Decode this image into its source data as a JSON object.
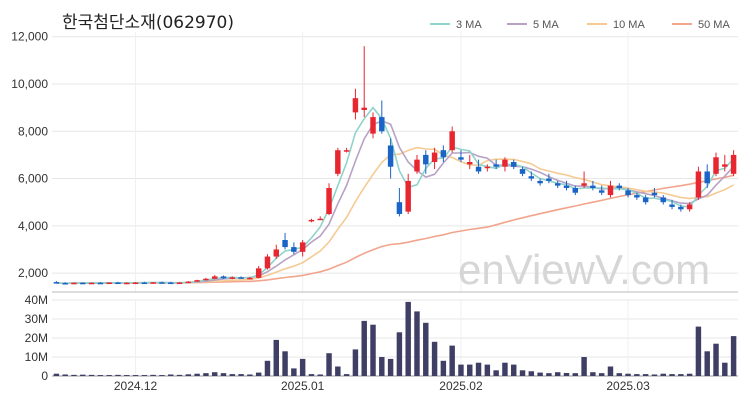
{
  "title": "한국첨단소재(062970)",
  "watermark": "enViewV.com",
  "colors": {
    "up": "#e8262f",
    "down": "#1a64c8",
    "volume": "#3f3f66",
    "ma3": "#8fd3cc",
    "ma5": "#b7a2c6",
    "ma10": "#f5ca93",
    "ma50": "#f2a48c"
  },
  "chart_data": {
    "type": "candlestick",
    "price_axis": {
      "ylim": [
        1200,
        12200
      ],
      "ticks": [
        "2,000",
        "4,000",
        "6,000",
        "8,000",
        "10,000",
        "12,000"
      ],
      "tick_values": [
        2000,
        4000,
        6000,
        8000,
        10000,
        12000
      ]
    },
    "volume_axis": {
      "ylim": [
        0,
        40
      ],
      "ticks": [
        "0",
        "10M",
        "20M",
        "30M",
        "40M"
      ],
      "tick_values": [
        0,
        10,
        20,
        30,
        40
      ],
      "unit": "M"
    },
    "x_labels": [
      {
        "label": "2024.12",
        "index": 9
      },
      {
        "label": "2025.01",
        "index": 28
      },
      {
        "label": "2025.02",
        "index": 46
      },
      {
        "label": "2025.03",
        "index": 65
      }
    ],
    "legend": [
      "3 MA",
      "5 MA",
      "10 MA",
      "50 MA"
    ],
    "candles": [
      [
        1620,
        1660,
        1580,
        1580
      ],
      [
        1580,
        1620,
        1540,
        1560
      ],
      [
        1560,
        1600,
        1530,
        1590
      ],
      [
        1590,
        1610,
        1560,
        1570
      ],
      [
        1570,
        1600,
        1540,
        1590
      ],
      [
        1590,
        1620,
        1560,
        1580
      ],
      [
        1580,
        1610,
        1550,
        1600
      ],
      [
        1600,
        1630,
        1570,
        1580
      ],
      [
        1580,
        1610,
        1560,
        1590
      ],
      [
        1590,
        1620,
        1570,
        1600
      ],
      [
        1600,
        1630,
        1570,
        1590
      ],
      [
        1590,
        1620,
        1560,
        1610
      ],
      [
        1610,
        1640,
        1580,
        1600
      ],
      [
        1600,
        1630,
        1560,
        1560
      ],
      [
        1560,
        1620,
        1540,
        1600
      ],
      [
        1600,
        1660,
        1580,
        1640
      ],
      [
        1640,
        1720,
        1620,
        1700
      ],
      [
        1700,
        1800,
        1680,
        1760
      ],
      [
        1760,
        1920,
        1740,
        1860
      ],
      [
        1860,
        1900,
        1760,
        1780
      ],
      [
        1780,
        1860,
        1740,
        1820
      ],
      [
        1820,
        1860,
        1760,
        1780
      ],
      [
        1780,
        1840,
        1740,
        1800
      ],
      [
        1800,
        2300,
        1780,
        2200
      ],
      [
        2200,
        2800,
        2150,
        2700
      ],
      [
        2700,
        3200,
        2600,
        3000
      ],
      [
        3400,
        3700,
        3000,
        3100
      ],
      [
        3100,
        3300,
        2800,
        2900
      ],
      [
        2900,
        3400,
        2700,
        3300
      ],
      [
        4200,
        4300,
        4150,
        4250
      ],
      [
        4300,
        4400,
        4250,
        4300
      ],
      [
        4500,
        5800,
        4450,
        5600
      ],
      [
        6200,
        7300,
        6100,
        7200
      ],
      [
        7200,
        7300,
        7100,
        7200
      ],
      [
        8800,
        9800,
        8500,
        9400
      ],
      [
        8900,
        11600,
        8600,
        9000
      ],
      [
        7900,
        8800,
        7700,
        8600
      ],
      [
        8600,
        9300,
        7900,
        8000
      ],
      [
        7400,
        7700,
        6000,
        6500
      ],
      [
        5000,
        5600,
        4400,
        4500
      ],
      [
        4600,
        6200,
        4500,
        5900
      ],
      [
        6300,
        7000,
        6200,
        6800
      ],
      [
        7000,
        7200,
        6200,
        6600
      ],
      [
        6700,
        7300,
        6400,
        7100
      ],
      [
        7200,
        7400,
        6700,
        6900
      ],
      [
        7200,
        8200,
        7100,
        8000
      ],
      [
        6900,
        7200,
        6700,
        6800
      ],
      [
        6600,
        7000,
        6400,
        6700
      ],
      [
        6500,
        6800,
        6200,
        6300
      ],
      [
        6500,
        6600,
        6300,
        6500
      ],
      [
        6600,
        6800,
        6400,
        6500
      ],
      [
        6500,
        6900,
        6300,
        6800
      ],
      [
        6700,
        6800,
        6400,
        6500
      ],
      [
        6400,
        6500,
        6100,
        6200
      ],
      [
        6100,
        6300,
        5900,
        6000
      ],
      [
        5900,
        6000,
        5700,
        5800
      ],
      [
        6000,
        6200,
        5800,
        5900
      ],
      [
        5800,
        5900,
        5600,
        5700
      ],
      [
        5700,
        5900,
        5500,
        5600
      ],
      [
        5600,
        5700,
        5300,
        5400
      ],
      [
        5700,
        6300,
        5600,
        5800
      ],
      [
        5700,
        5900,
        5500,
        5600
      ],
      [
        5500,
        5700,
        5300,
        5400
      ],
      [
        5300,
        5900,
        5200,
        5700
      ],
      [
        5700,
        5800,
        5500,
        5600
      ],
      [
        5500,
        5600,
        5200,
        5300
      ],
      [
        5300,
        5400,
        5100,
        5200
      ],
      [
        5200,
        5300,
        4900,
        5000
      ],
      [
        5400,
        5600,
        5200,
        5300
      ],
      [
        5200,
        5300,
        4900,
        5000
      ],
      [
        4900,
        5100,
        4700,
        4800
      ],
      [
        4800,
        4900,
        4600,
        4700
      ],
      [
        4700,
        5000,
        4600,
        4900
      ],
      [
        5200,
        6500,
        5100,
        6300
      ],
      [
        6300,
        6600,
        5600,
        5800
      ],
      [
        6200,
        7100,
        6100,
        6900
      ],
      [
        6500,
        7000,
        6300,
        6600
      ],
      [
        6200,
        7200,
        6100,
        7000
      ]
    ],
    "volume_m": [
      1.2,
      0.8,
      0.6,
      0.7,
      0.6,
      0.5,
      0.5,
      0.6,
      0.5,
      0.5,
      0.5,
      0.6,
      0.5,
      0.8,
      0.6,
      0.9,
      1.2,
      1.5,
      2.0,
      1.5,
      1.0,
      1.0,
      0.8,
      1.8,
      8.0,
      19.0,
      13.0,
      4.0,
      9.0,
      1.0,
      0.8,
      12.0,
      5.0,
      1.0,
      14.0,
      29.0,
      27.0,
      10.0,
      9.0,
      23.0,
      39.0,
      34.0,
      28.0,
      18.0,
      8.0,
      16.0,
      6.0,
      6.0,
      7.0,
      6.0,
      3.0,
      7.0,
      6.0,
      3.0,
      2.5,
      1.8,
      1.5,
      2.0,
      1.6,
      1.5,
      10.0,
      2.0,
      1.5,
      5.0,
      1.5,
      1.2,
      1.0,
      1.0,
      0.8,
      1.2,
      1.0,
      1.0,
      1.2,
      26.0,
      13.0,
      17.0,
      7.0,
      21.0
    ]
  }
}
